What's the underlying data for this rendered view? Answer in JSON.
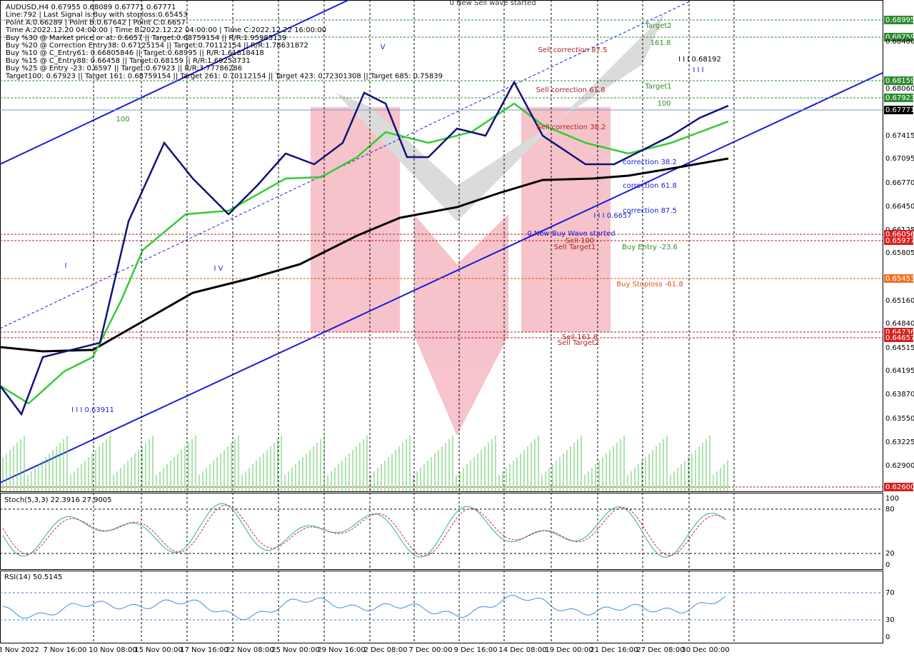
{
  "header": {
    "lines": [
      "AUDUSD,H4  0.67955 0.68089 0.67771 0.67771",
      "Line:792 | Last Signal is:Buy with stoploss:0.65453",
      "Point A:0.66289 | Point B:0.67642 | Point C:0.6657",
      "Time A:2022.12.20 04:00:00 | Time B:2022.12.22 04:00:00 | Time C:2022.12.22 16:00:00",
      "Buy %30 @ Market price or at: 0.6657 || Target:0.68759154 || R/R:1.95985139",
      "Buy %20 @ Correction Entry38: 0.67125154 || Target:0.70112154 || R/R:1.78631872",
      "Buy %10 @ C_Entry61: 0.66805846 || Target:0.68995 || R/R:1.61818418",
      "Buy %15 @ C_Entry88: 0.66458 || Target:0.68159 || R/R:1.69253731",
      "Buy %25 @ Entry -23: 0.6597 || Target:0.67923 || R/R:3.77786286",
      "Target100: 0.67923 || Target 161: 0.68759154 || Target 261: 0.70112154 || Target 423: 0.72301308 || Target 685: 0.75839"
    ]
  },
  "price_axis": [
    {
      "text": "0.68995",
      "kind": "green"
    },
    {
      "text": "0.68759",
      "kind": "green"
    },
    {
      "text": "0.68480",
      "kind": "plain"
    },
    {
      "text": "0.68159",
      "kind": "green"
    },
    {
      "text": "0.68060",
      "kind": "plain"
    },
    {
      "text": "0.67923",
      "kind": "green"
    },
    {
      "text": "0.67771",
      "kind": "black"
    },
    {
      "text": "0.67415",
      "kind": "plain"
    },
    {
      "text": "0.67095",
      "kind": "plain"
    },
    {
      "text": "0.66770",
      "kind": "plain"
    },
    {
      "text": "0.66450",
      "kind": "plain"
    },
    {
      "text": "0.66125",
      "kind": "plain"
    },
    {
      "text": "0.66056",
      "kind": "red"
    },
    {
      "text": "0.65977",
      "kind": "red"
    },
    {
      "text": "0.65805",
      "kind": "plain"
    },
    {
      "text": "0.65453",
      "kind": "orange"
    },
    {
      "text": "0.65160",
      "kind": "plain"
    },
    {
      "text": "0.64840",
      "kind": "plain"
    },
    {
      "text": "0.64736",
      "kind": "red"
    },
    {
      "text": "0.64657",
      "kind": "red"
    },
    {
      "text": "0.64515",
      "kind": "plain"
    },
    {
      "text": "0.64195",
      "kind": "plain"
    },
    {
      "text": "0.63870",
      "kind": "plain"
    },
    {
      "text": "0.63550",
      "kind": "plain"
    },
    {
      "text": "0.63225",
      "kind": "plain"
    },
    {
      "text": "0.62900",
      "kind": "plain"
    },
    {
      "text": "0.62600",
      "kind": "red"
    }
  ],
  "date_axis": [
    "3 Nov 2022",
    "7 Nov 16:00",
    "10 Nov 08:00",
    "15 Nov 00:00",
    "17 Nov 16:00",
    "22 Nov 08:00",
    "25 Nov 00:00",
    "29 Nov 16:00",
    "2 Dec 08:00",
    "7 Dec 00:00",
    "9 Dec 16:00",
    "14 Dec 08:00",
    "19 Dec 00:00",
    "21 Dec 16:00",
    "27 Dec 08:00",
    "30 Dec 00:00"
  ],
  "annotations": [
    {
      "text": "0 New Sell wave started",
      "kind": "dark"
    },
    {
      "text": "Sell correction 87.5",
      "kind": "brown"
    },
    {
      "text": "Sell correction 61.8",
      "kind": "brown"
    },
    {
      "text": "Sell correction 38.2",
      "kind": "brown"
    },
    {
      "text": "Target2",
      "kind": "green"
    },
    {
      "text": "161.8",
      "kind": "green"
    },
    {
      "text": "I I I 0.68192",
      "kind": "black"
    },
    {
      "text": "I I I",
      "kind": "blue"
    },
    {
      "text": "Target1",
      "kind": "green"
    },
    {
      "text": "100",
      "kind": "green"
    },
    {
      "text": "correction 38.2",
      "kind": "blue"
    },
    {
      "text": "correction 61.8",
      "kind": "blue"
    },
    {
      "text": "correction 87.5",
      "kind": "blue"
    },
    {
      "text": "I I I 0.6657",
      "kind": "blue"
    },
    {
      "text": "0 New Buy Wave started",
      "kind": "blue"
    },
    {
      "text": "Sell 100",
      "kind": "brown"
    },
    {
      "text": "Sell Target1",
      "kind": "brown"
    },
    {
      "text": "Buy Entry -23.6",
      "kind": "green"
    },
    {
      "text": "Buy Stoploss -61.8",
      "kind": "red"
    },
    {
      "text": "Sell 161.8",
      "kind": "brown"
    },
    {
      "text": "Sell Target2",
      "kind": "brown"
    },
    {
      "text": "I I I 0.63911",
      "kind": "blue"
    },
    {
      "text": "100",
      "kind": "green"
    },
    {
      "text": "I V",
      "kind": "blue"
    },
    {
      "text": "V",
      "kind": "blue"
    },
    {
      "text": "I",
      "kind": "blue"
    }
  ],
  "stochastic": {
    "label": "Stoch(5,3,3) 22.3916 27.9005",
    "axis": [
      "100",
      "80",
      "20",
      "0"
    ]
  },
  "rsi": {
    "label": "RSI(14) 50.5145",
    "axis": [
      "70",
      "30",
      "0"
    ]
  }
}
